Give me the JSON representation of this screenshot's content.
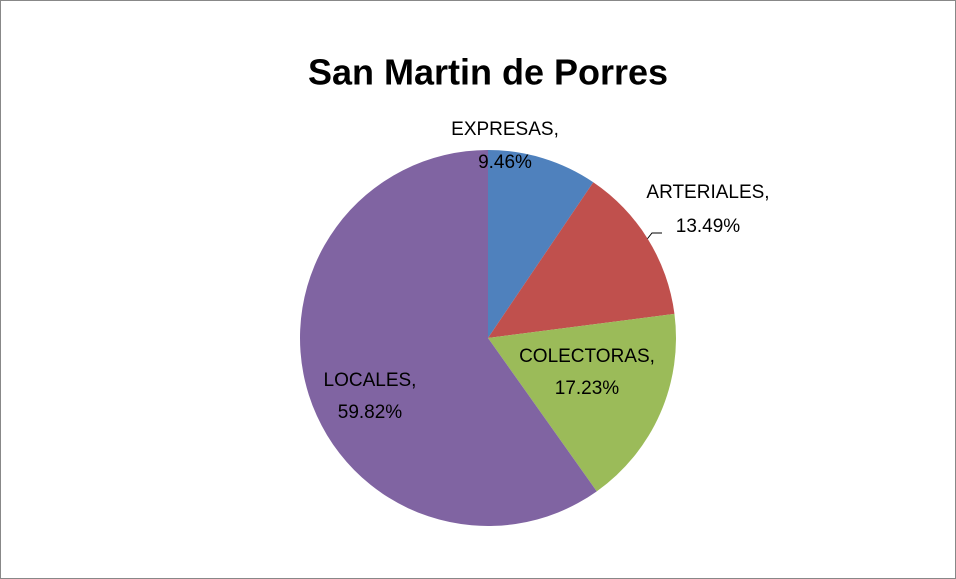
{
  "chart_data": {
    "type": "pie",
    "title": "San Martin de Porres",
    "categories": [
      "EXPRESAS,",
      "ARTERIALES,",
      "COLECTORAS,",
      "LOCALES,"
    ],
    "values": [
      9.46,
      13.49,
      17.23,
      59.82
    ],
    "value_labels": [
      "9.46%",
      "13.49%",
      "17.23%",
      "59.82%"
    ],
    "colors": [
      "#4f81bd",
      "#c0504d",
      "#9bbb59",
      "#8064a2"
    ]
  }
}
